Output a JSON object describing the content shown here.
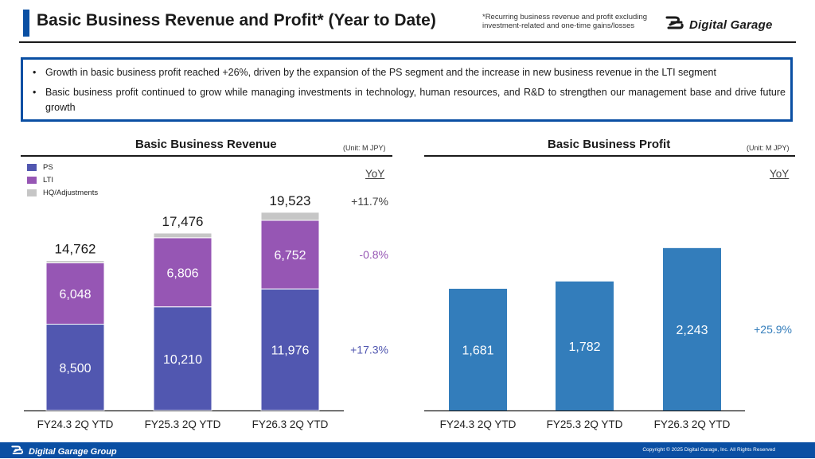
{
  "header": {
    "title": "Basic Business Revenue and Profit* (Year to Date)",
    "footnote_line1": "*Recurring business revenue and profit excluding",
    "footnote_line2": "investment-related and one-time gains/losses",
    "logo_text": "Digital Garage"
  },
  "summary": {
    "bullets": [
      "Growth in basic business profit reached +26%, driven by the expansion of the PS segment and the increase in new business revenue in the LTI segment",
      "Basic business profit continued to grow while managing investments in technology, human resources, and R&D to strengthen our management base and drive future growth"
    ]
  },
  "colors": {
    "brand_blue": "#0a4fa3",
    "ps": "#5157b0",
    "lti": "#9656b4",
    "hq": "#c6c6c6",
    "profit": "#337dbb"
  },
  "chart_data": [
    {
      "type": "bar",
      "stacked": true,
      "title": "Basic Business Revenue",
      "unit": "(Unit: M JPY)",
      "categories": [
        "FY24.3 2Q YTD",
        "FY25.3 2Q YTD",
        "FY26.3 2Q YTD"
      ],
      "series": [
        {
          "name": "PS",
          "color": "#5157b0",
          "values": [
            8500,
            10210,
            11976
          ],
          "labels": [
            "8,500",
            "10,210",
            "11,976"
          ]
        },
        {
          "name": "LTI",
          "color": "#9656b4",
          "values": [
            6048,
            6806,
            6752
          ],
          "labels": [
            "6,048",
            "6,806",
            "6,752"
          ]
        },
        {
          "name": "HQ/Adjustments",
          "color": "#c6c6c6",
          "values": [
            214,
            460,
            795
          ]
        }
      ],
      "totals": [
        14762,
        17476,
        19523
      ],
      "total_labels": [
        "14,762",
        "17,476",
        "19,523"
      ],
      "yoy_header": "YoY",
      "yoy": [
        {
          "label": "+11.7%",
          "target": "total",
          "color": "#444444"
        },
        {
          "label": "-0.8%",
          "target": "LTI",
          "color": "#9656b4"
        },
        {
          "label": "+17.3%",
          "target": "PS",
          "color": "#5157b0"
        }
      ],
      "legend": [
        "PS",
        "LTI",
        "HQ/Adjustments"
      ],
      "legend_position": "top-left",
      "ylim": [
        0,
        21000
      ],
      "grid": false
    },
    {
      "type": "bar",
      "stacked": false,
      "title": "Basic Business Profit",
      "unit": "(Unit: M JPY)",
      "categories": [
        "FY24.3 2Q YTD",
        "FY25.3 2Q YTD",
        "FY26.3 2Q YTD"
      ],
      "series": [
        {
          "name": "Basic Business Profit",
          "color": "#337dbb",
          "values": [
            1681,
            1782,
            2243
          ],
          "labels": [
            "1,681",
            "1,782",
            "2,243"
          ]
        }
      ],
      "yoy_header": "YoY",
      "yoy": [
        {
          "label": "+25.9%",
          "color": "#337dbb"
        }
      ],
      "ylim": [
        0,
        2450
      ],
      "grid": false
    }
  ],
  "footer": {
    "logo_text": "Digital Garage Group",
    "copyright": "Copyright © 2025 Digital Garage, Inc. All Rights Reserved"
  }
}
